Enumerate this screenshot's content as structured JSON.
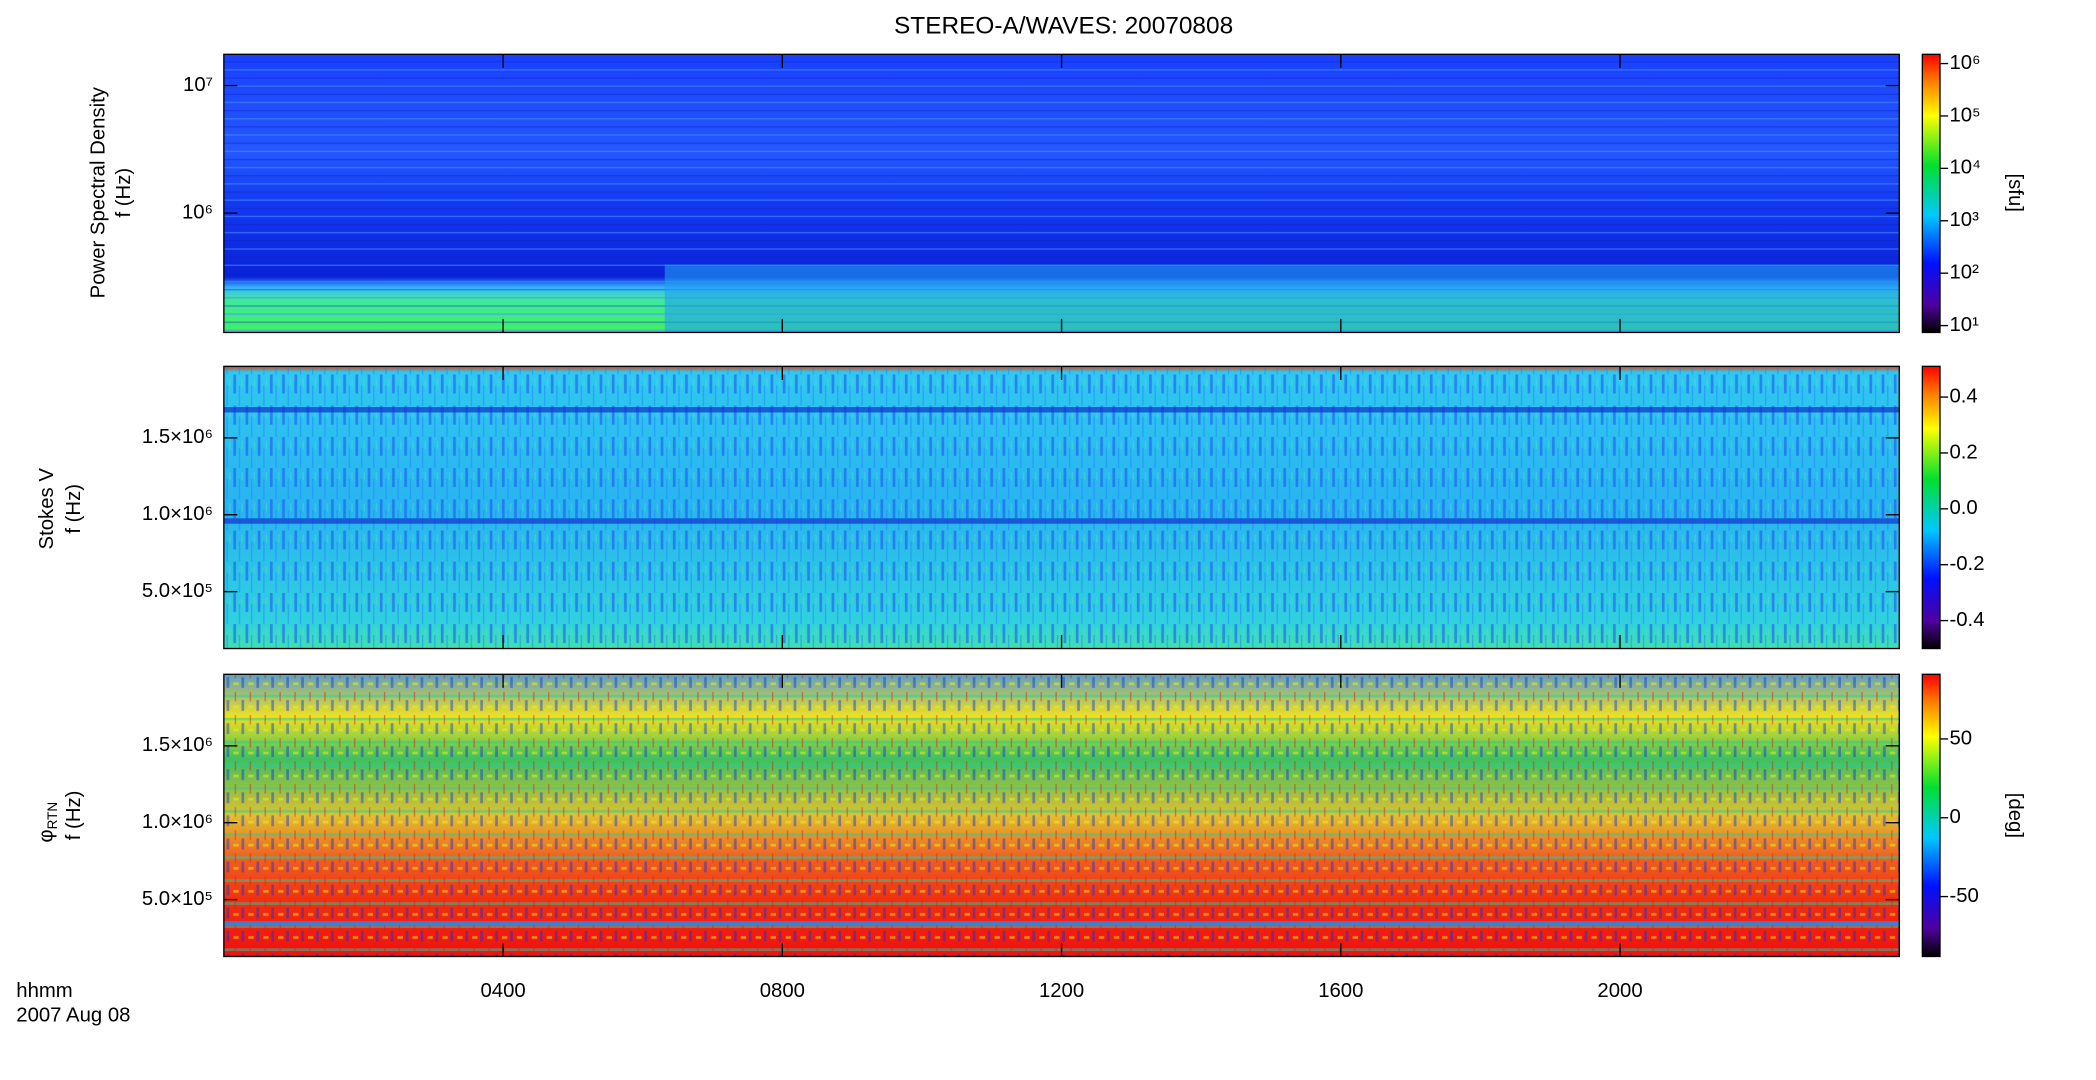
{
  "chart_data": [
    {
      "type": "heatmap",
      "title": "STEREO-A/WAVES: 20070808",
      "ylabel": "Power Spectral Density",
      "ylabel2": "f (Hz)",
      "ylog": true,
      "ylim": [
        116000,
        17600000
      ],
      "yticks": [
        {
          "value": 1000000,
          "label": "10⁶"
        },
        {
          "value": 10000000,
          "label": "10⁷"
        }
      ],
      "colorbar": {
        "log": true,
        "clim": [
          7.4,
          1500000
        ],
        "label": "[sfu]",
        "ticks": [
          {
            "value": 10,
            "label": "10¹"
          },
          {
            "value": 100,
            "label": "10²"
          },
          {
            "value": 1000,
            "label": "10³"
          },
          {
            "value": 10000,
            "label": "10⁴"
          },
          {
            "value": 100000,
            "label": "10⁵"
          },
          {
            "value": 1000000,
            "label": "10⁶"
          }
        ]
      }
    },
    {
      "type": "heatmap",
      "ylabel": "Stokes V",
      "ylabel2": "f (Hz)",
      "ylog": false,
      "ylim": [
        130000,
        1965000
      ],
      "yticks": [
        {
          "value": 500000,
          "label": "5.0×10⁵"
        },
        {
          "value": 1000000,
          "label": "1.0×10⁶"
        },
        {
          "value": 1500000,
          "label": "1.5×10⁶"
        }
      ],
      "colorbar": {
        "log": false,
        "clim": [
          -0.5,
          0.51
        ],
        "ticks": [
          -0.4,
          -0.2,
          {
            "value": 0,
            "label": "0.0"
          },
          0.2,
          0.4
        ]
      }
    },
    {
      "type": "heatmap",
      "ylabel": "φ",
      "ylabel_sub": "RTN",
      "ylabel2": "f (Hz)",
      "ylog": false,
      "ylim": [
        130000,
        1965000
      ],
      "yticks": [
        {
          "value": 500000,
          "label": "5.0×10⁵"
        },
        {
          "value": 1000000,
          "label": "1.0×10⁶"
        },
        {
          "value": 1500000,
          "label": "1.5×10⁶"
        }
      ],
      "colorbar": {
        "log": false,
        "clim": [
          -88,
          91
        ],
        "label": "[deg]",
        "ticks": [
          -50,
          0,
          50
        ]
      },
      "xlim": [
        0,
        24
      ],
      "xticks": [
        {
          "value": 4,
          "label": "0400"
        },
        {
          "value": 8,
          "label": "0800"
        },
        {
          "value": 12,
          "label": "1200"
        },
        {
          "value": 16,
          "label": "1600"
        },
        {
          "value": 20,
          "label": "2000"
        }
      ],
      "xlabel": "hhmm",
      "xlabel2": "2007 Aug 08"
    }
  ]
}
